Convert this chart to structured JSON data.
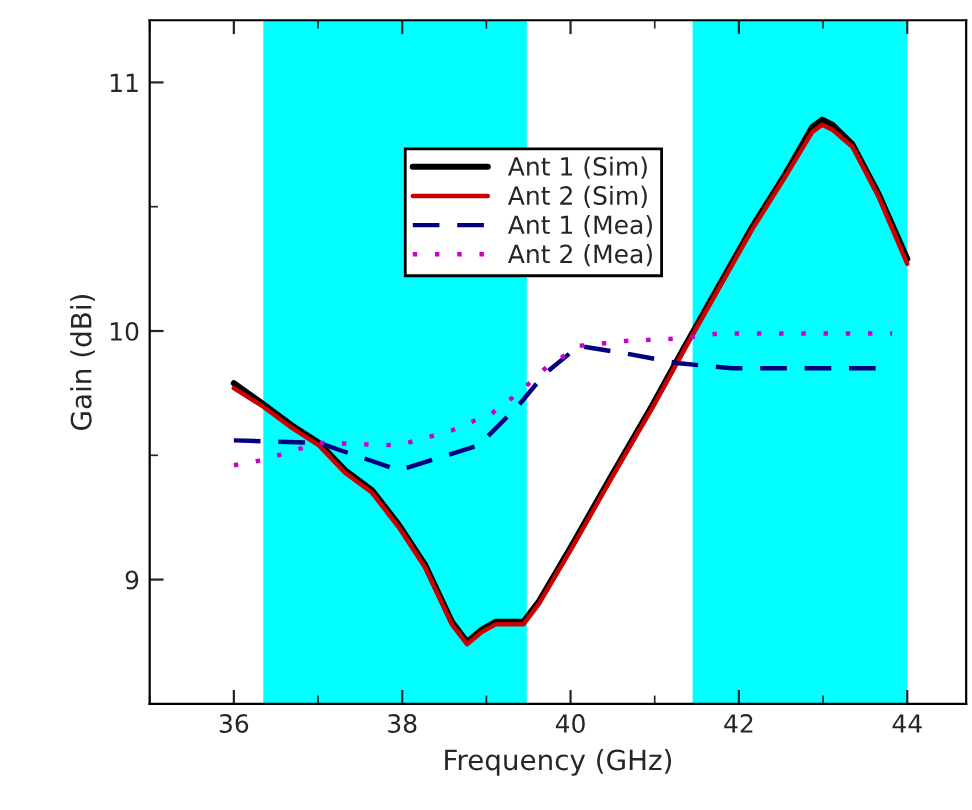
{
  "chart_data": {
    "type": "line",
    "xlabel": "Frequency (GHz)",
    "ylabel": "Gain (dBi)",
    "xlim": [
      35,
      44.7
    ],
    "ylim": [
      8.5,
      11.25
    ],
    "xticks": [
      36,
      38,
      40,
      42,
      44
    ],
    "yticks": [
      9,
      10,
      11
    ],
    "grid": false,
    "legend": "top",
    "marker": "none",
    "bands": [
      {
        "axis": "x",
        "from": 36.35,
        "to": 39.48,
        "color": "#00ffff"
      },
      {
        "axis": "x",
        "from": 41.45,
        "to": 44.0,
        "color": "#00ffff"
      }
    ],
    "series": [
      {
        "name": "Ant 1 (Sim)",
        "color": "#000000",
        "line_style": "solid",
        "x": [
          36.0,
          36.33,
          36.69,
          37.01,
          37.32,
          37.64,
          37.96,
          38.27,
          38.59,
          38.77,
          38.95,
          39.11,
          39.44,
          39.62,
          40.02,
          40.49,
          40.97,
          41.36,
          41.76,
          42.16,
          42.55,
          42.87,
          42.99,
          43.11,
          43.35,
          43.66,
          44.0
        ],
        "values": [
          9.79,
          9.71,
          9.62,
          9.55,
          9.44,
          9.36,
          9.22,
          9.06,
          8.83,
          8.75,
          8.8,
          8.83,
          8.83,
          8.91,
          9.14,
          9.42,
          9.7,
          9.94,
          10.18,
          10.42,
          10.63,
          10.82,
          10.85,
          10.83,
          10.75,
          10.55,
          10.29
        ]
      },
      {
        "name": "Ant 2 (Sim)",
        "color": "#cc0000",
        "line_style": "solid",
        "x": [
          36.0,
          36.33,
          36.69,
          37.01,
          37.32,
          37.64,
          37.96,
          38.27,
          38.59,
          38.77,
          38.95,
          39.11,
          39.44,
          39.62,
          40.02,
          40.49,
          40.97,
          41.36,
          41.76,
          42.16,
          42.55,
          42.87,
          42.99,
          43.11,
          43.35,
          43.66,
          44.0
        ],
        "values": [
          9.77,
          9.7,
          9.61,
          9.54,
          9.43,
          9.35,
          9.21,
          9.05,
          8.82,
          8.74,
          8.79,
          8.82,
          8.82,
          8.9,
          9.13,
          9.41,
          9.69,
          9.93,
          10.17,
          10.41,
          10.62,
          10.8,
          10.83,
          10.81,
          10.74,
          10.54,
          10.27
        ]
      },
      {
        "name": "Ant 1 (Mea)",
        "color": "#000080",
        "line_style": "dashed",
        "x": [
          36.0,
          37.01,
          37.96,
          38.91,
          39.38,
          39.7,
          40.1,
          40.65,
          41.29,
          41.92,
          42.55,
          43.66
        ],
        "values": [
          9.56,
          9.55,
          9.44,
          9.54,
          9.7,
          9.83,
          9.94,
          9.91,
          9.87,
          9.85,
          9.85,
          9.85
        ]
      },
      {
        "name": "Ant 2 (Mea)",
        "color": "#cc00cc",
        "line_style": "dotted",
        "x": [
          36.0,
          36.33,
          37.01,
          37.96,
          38.59,
          39.07,
          39.38,
          39.7,
          40.1,
          40.65,
          41.29,
          41.76,
          42.55,
          43.82
        ],
        "values": [
          9.46,
          9.48,
          9.55,
          9.54,
          9.6,
          9.67,
          9.75,
          9.85,
          9.94,
          9.96,
          9.97,
          9.99,
          9.99,
          9.99
        ]
      }
    ]
  }
}
